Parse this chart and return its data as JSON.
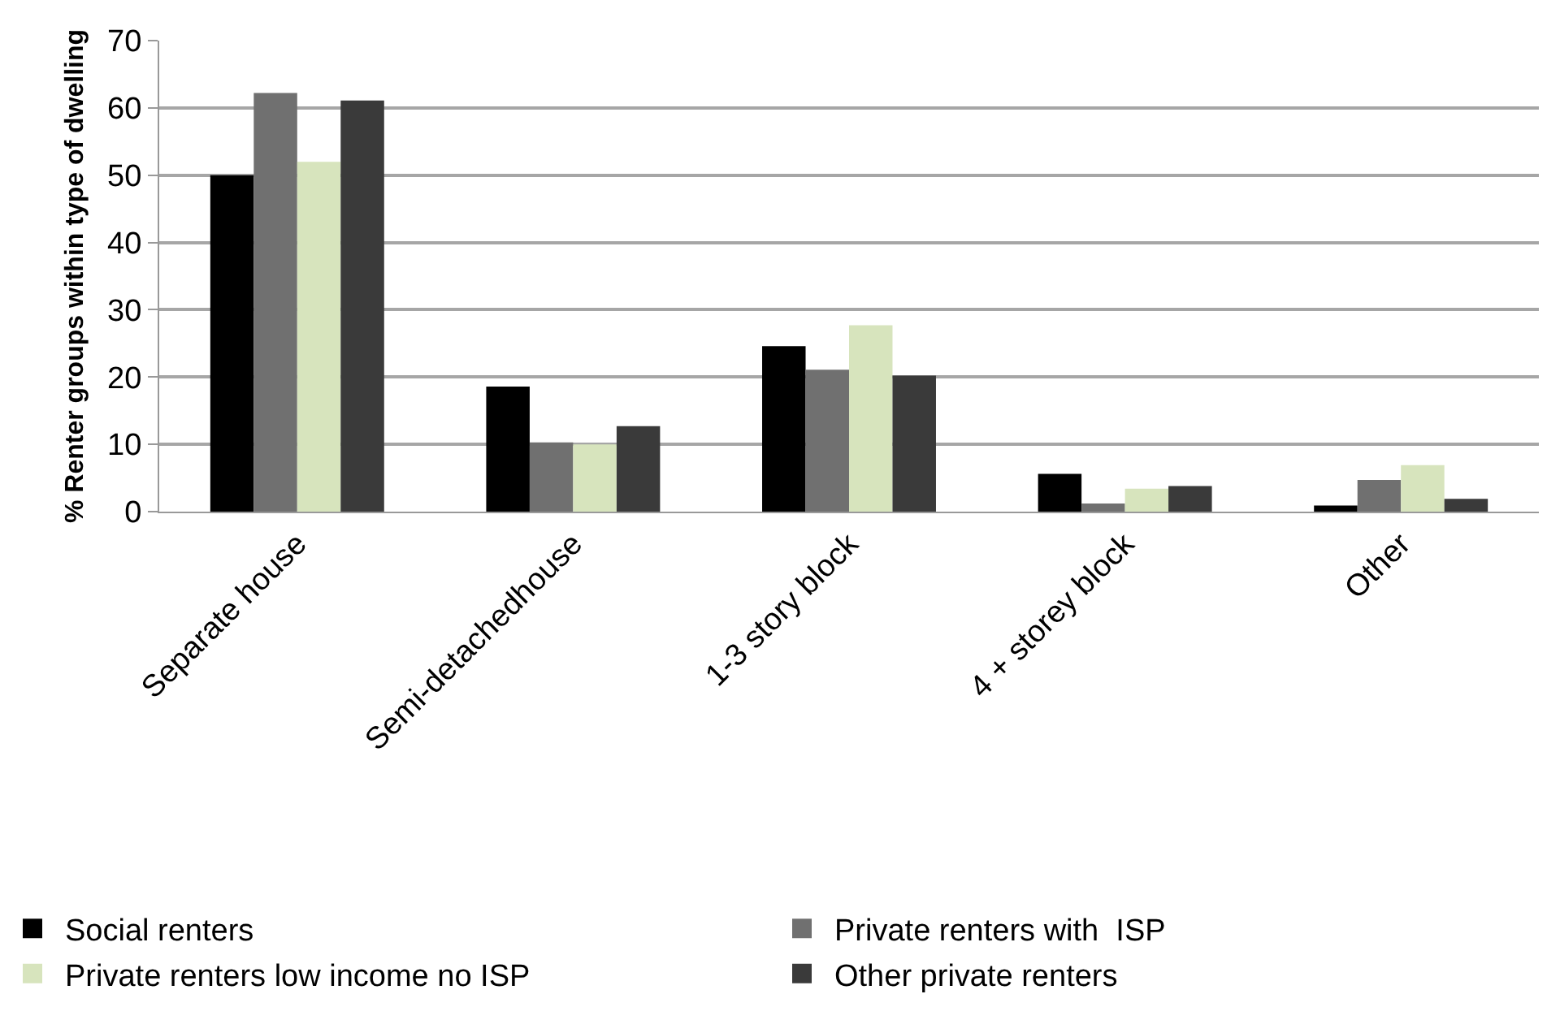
{
  "chart_data": {
    "type": "bar",
    "ylabel": "% Renter groups within type of dwelling",
    "categories": [
      "Separate house",
      "Semi-detachedhouse",
      "1-3 story block",
      "4 + storey block",
      "Other"
    ],
    "series": [
      {
        "name": "Social renters",
        "color": "#000000",
        "values": [
          50,
          18.6,
          24.6,
          5.6,
          0.9
        ]
      },
      {
        "name": "Private renters with  ISP",
        "color": "#707070",
        "values": [
          62.2,
          10.3,
          21.1,
          1.2,
          4.7
        ]
      },
      {
        "name": "Private renters low income no ISP",
        "color": "#d7e4bd",
        "values": [
          52,
          10,
          27.7,
          3.4,
          6.9
        ]
      },
      {
        "name": "Other private renters",
        "color": "#3a3a3a",
        "values": [
          61.1,
          12.7,
          20.2,
          3.8,
          1.9
        ]
      }
    ],
    "ylim": [
      0,
      70
    ],
    "yticks": [
      0,
      10,
      20,
      30,
      40,
      50,
      60,
      70
    ],
    "grid": "y",
    "legend": "bottom"
  }
}
